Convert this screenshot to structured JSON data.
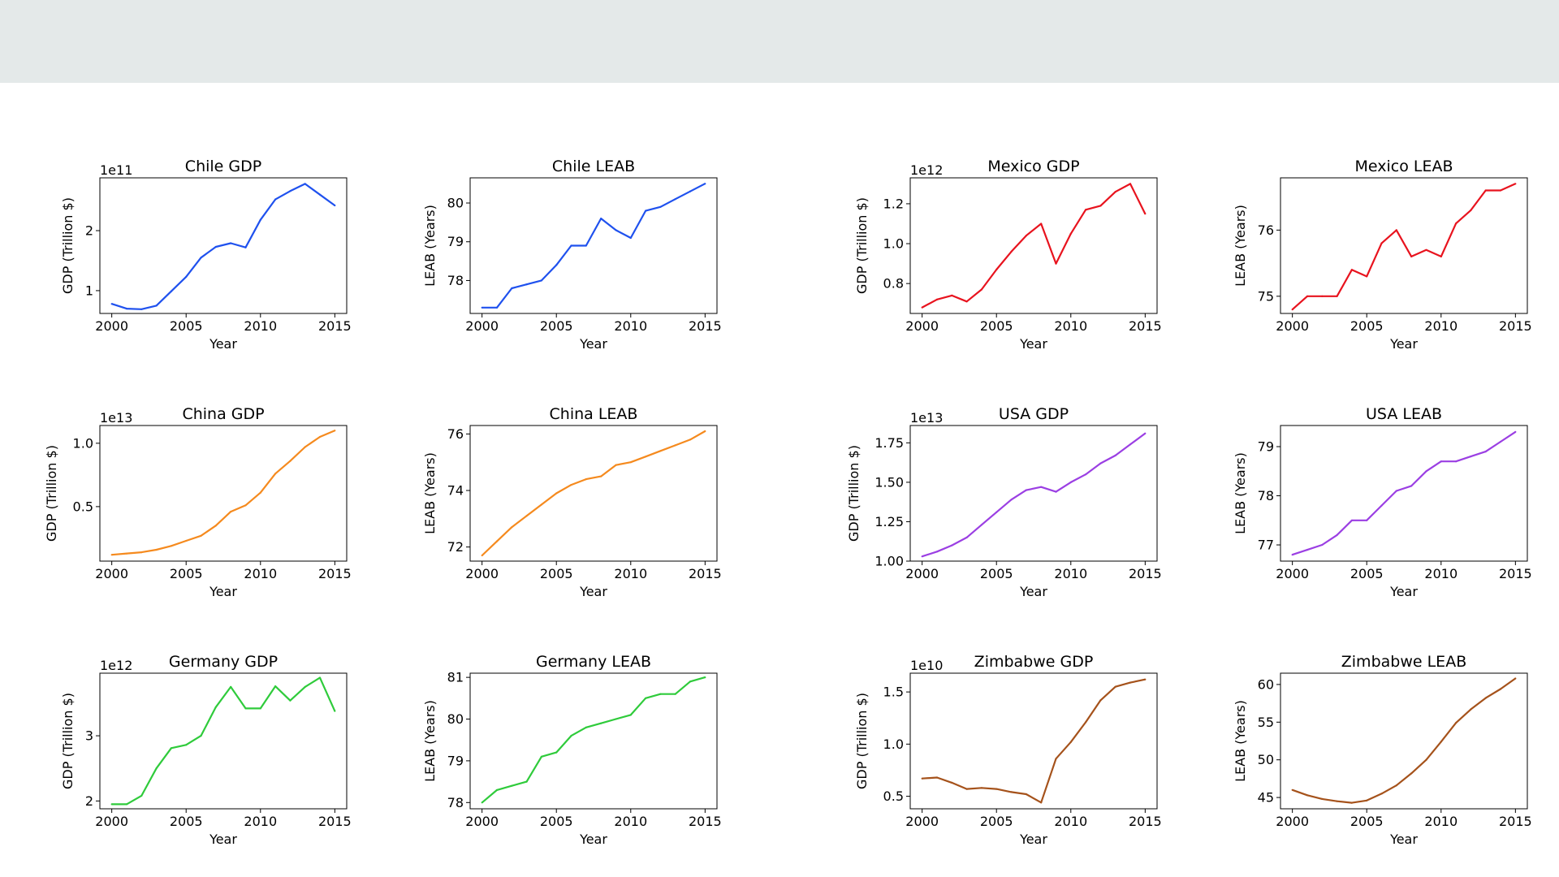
{
  "page": {
    "banner_color": "#e4e9e9"
  },
  "chart_data": [
    {
      "type": "line",
      "title": "Chile GDP",
      "xlabel": "Year",
      "ylabel": "GDP (Trillion $)",
      "offset_text": "1e11",
      "color": "#1f51ee",
      "x": [
        2000,
        2001,
        2002,
        2003,
        2004,
        2005,
        2006,
        2007,
        2008,
        2009,
        2010,
        2011,
        2012,
        2013,
        2014,
        2015
      ],
      "values": [
        0.78,
        0.7,
        0.69,
        0.75,
        0.99,
        1.23,
        1.55,
        1.73,
        1.79,
        1.72,
        2.18,
        2.52,
        2.66,
        2.78,
        2.6,
        2.42
      ],
      "xlim": [
        1999.2,
        2015.8
      ],
      "ylim": [
        0.62,
        2.88
      ],
      "xticks": [
        2000,
        2005,
        2010,
        2015
      ],
      "yticks": [
        1,
        2
      ],
      "ytick_labels": [
        "1",
        "2"
      ]
    },
    {
      "type": "line",
      "title": "Chile LEAB",
      "xlabel": "Year",
      "ylabel": "LEAB (Years)",
      "color": "#1f51ee",
      "x": [
        2000,
        2001,
        2002,
        2003,
        2004,
        2005,
        2006,
        2007,
        2008,
        2009,
        2010,
        2011,
        2012,
        2013,
        2014,
        2015
      ],
      "values": [
        77.3,
        77.3,
        77.8,
        77.9,
        78.0,
        78.4,
        78.9,
        78.9,
        79.6,
        79.3,
        79.1,
        79.8,
        79.9,
        80.1,
        80.3,
        80.5
      ],
      "xlim": [
        1999.2,
        2015.8
      ],
      "ylim": [
        77.15,
        80.65
      ],
      "xticks": [
        2000,
        2005,
        2010,
        2015
      ],
      "yticks": [
        78,
        79,
        80
      ],
      "ytick_labels": [
        "78",
        "79",
        "80"
      ]
    },
    {
      "type": "line",
      "title": "Mexico GDP",
      "xlabel": "Year",
      "ylabel": "GDP (Trillion $)",
      "offset_text": "1e12",
      "color": "#e8131e",
      "x": [
        2000,
        2001,
        2002,
        2003,
        2004,
        2005,
        2006,
        2007,
        2008,
        2009,
        2010,
        2011,
        2012,
        2013,
        2014,
        2015
      ],
      "values": [
        0.68,
        0.72,
        0.74,
        0.71,
        0.77,
        0.87,
        0.96,
        1.04,
        1.1,
        0.9,
        1.05,
        1.17,
        1.19,
        1.26,
        1.3,
        1.15
      ],
      "xlim": [
        1999.2,
        2015.8
      ],
      "ylim": [
        0.65,
        1.33
      ],
      "xticks": [
        2000,
        2005,
        2010,
        2015
      ],
      "yticks": [
        0.8,
        1.0,
        1.2
      ],
      "ytick_labels": [
        "0.8",
        "1.0",
        "1.2"
      ]
    },
    {
      "type": "line",
      "title": "Mexico LEAB",
      "xlabel": "Year",
      "ylabel": "LEAB (Years)",
      "color": "#e8131e",
      "x": [
        2000,
        2001,
        2002,
        2003,
        2004,
        2005,
        2006,
        2007,
        2008,
        2009,
        2010,
        2011,
        2012,
        2013,
        2014,
        2015
      ],
      "values": [
        74.8,
        75.0,
        75.0,
        75.0,
        75.4,
        75.3,
        75.8,
        76.0,
        75.6,
        75.7,
        75.6,
        76.1,
        76.3,
        76.6,
        76.6,
        76.7
      ],
      "xlim": [
        1999.2,
        2015.8
      ],
      "ylim": [
        74.74,
        76.79
      ],
      "xticks": [
        2000,
        2005,
        2010,
        2015
      ],
      "yticks": [
        75,
        76
      ],
      "ytick_labels": [
        "75",
        "76"
      ]
    },
    {
      "type": "line",
      "title": "China GDP",
      "xlabel": "Year",
      "ylabel": "GDP (Trillion $)",
      "offset_text": "1e13",
      "color": "#f58a1e",
      "x": [
        2000,
        2001,
        2002,
        2003,
        2004,
        2005,
        2006,
        2007,
        2008,
        2009,
        2010,
        2011,
        2012,
        2013,
        2014,
        2015
      ],
      "values": [
        0.12,
        0.13,
        0.14,
        0.16,
        0.19,
        0.23,
        0.27,
        0.35,
        0.46,
        0.51,
        0.61,
        0.76,
        0.86,
        0.97,
        1.05,
        1.1
      ],
      "xlim": [
        1999.2,
        2015.8
      ],
      "ylim": [
        0.07,
        1.14
      ],
      "xticks": [
        2000,
        2005,
        2010,
        2015
      ],
      "yticks": [
        0.5,
        1.0
      ],
      "ytick_labels": [
        "0.5",
        "1.0"
      ]
    },
    {
      "type": "line",
      "title": "China LEAB",
      "xlabel": "Year",
      "ylabel": "LEAB (Years)",
      "color": "#f58a1e",
      "x": [
        2000,
        2001,
        2002,
        2003,
        2004,
        2005,
        2006,
        2007,
        2008,
        2009,
        2010,
        2011,
        2012,
        2013,
        2014,
        2015
      ],
      "values": [
        71.7,
        72.2,
        72.7,
        73.1,
        73.5,
        73.9,
        74.2,
        74.4,
        74.5,
        74.9,
        75.0,
        75.2,
        75.4,
        75.6,
        75.8,
        76.1
      ],
      "xlim": [
        1999.2,
        2015.8
      ],
      "ylim": [
        71.5,
        76.3
      ],
      "xticks": [
        2000,
        2005,
        2010,
        2015
      ],
      "yticks": [
        72,
        74,
        76
      ],
      "ytick_labels": [
        "72",
        "74",
        "76"
      ]
    },
    {
      "type": "line",
      "title": "USA GDP",
      "xlabel": "Year",
      "ylabel": "GDP (Trillion $)",
      "offset_text": "1e13",
      "color": "#9b3fe3",
      "x": [
        2000,
        2001,
        2002,
        2003,
        2004,
        2005,
        2006,
        2007,
        2008,
        2009,
        2010,
        2011,
        2012,
        2013,
        2014,
        2015
      ],
      "values": [
        1.03,
        1.06,
        1.1,
        1.15,
        1.23,
        1.31,
        1.39,
        1.45,
        1.47,
        1.44,
        1.5,
        1.55,
        1.62,
        1.67,
        1.74,
        1.81
      ],
      "xlim": [
        1999.2,
        2015.8
      ],
      "ylim": [
        1.0,
        1.86
      ],
      "xticks": [
        2000,
        2005,
        2010,
        2015
      ],
      "yticks": [
        1.0,
        1.25,
        1.5,
        1.75
      ],
      "ytick_labels": [
        "1.00",
        "1.25",
        "1.50",
        "1.75"
      ]
    },
    {
      "type": "line",
      "title": "USA LEAB",
      "xlabel": "Year",
      "ylabel": "LEAB (Years)",
      "color": "#9b3fe3",
      "x": [
        2000,
        2001,
        2002,
        2003,
        2004,
        2005,
        2006,
        2007,
        2008,
        2009,
        2010,
        2011,
        2012,
        2013,
        2014,
        2015
      ],
      "values": [
        76.8,
        76.9,
        77.0,
        77.2,
        77.5,
        77.5,
        77.8,
        78.1,
        78.2,
        78.5,
        78.7,
        78.7,
        78.8,
        78.9,
        79.1,
        79.3
      ],
      "xlim": [
        1999.2,
        2015.8
      ],
      "ylim": [
        76.67,
        79.43
      ],
      "xticks": [
        2000,
        2005,
        2010,
        2015
      ],
      "yticks": [
        77,
        78,
        79
      ],
      "ytick_labels": [
        "77",
        "78",
        "79"
      ]
    },
    {
      "type": "line",
      "title": "Germany GDP",
      "xlabel": "Year",
      "ylabel": "GDP (Trillion $)",
      "offset_text": "1e12",
      "color": "#2fcb3b",
      "x": [
        2000,
        2001,
        2002,
        2003,
        2004,
        2005,
        2006,
        2007,
        2008,
        2009,
        2010,
        2011,
        2012,
        2013,
        2014,
        2015
      ],
      "values": [
        1.95,
        1.95,
        2.08,
        2.5,
        2.81,
        2.86,
        3.0,
        3.44,
        3.75,
        3.42,
        3.42,
        3.76,
        3.54,
        3.75,
        3.89,
        3.38
      ],
      "xlim": [
        1999.2,
        2015.8
      ],
      "ylim": [
        1.88,
        3.96
      ],
      "xticks": [
        2000,
        2005,
        2010,
        2015
      ],
      "yticks": [
        2,
        3
      ],
      "ytick_labels": [
        "2",
        "3"
      ]
    },
    {
      "type": "line",
      "title": "Germany LEAB",
      "xlabel": "Year",
      "ylabel": "LEAB (Years)",
      "color": "#2fcb3b",
      "x": [
        2000,
        2001,
        2002,
        2003,
        2004,
        2005,
        2006,
        2007,
        2008,
        2009,
        2010,
        2011,
        2012,
        2013,
        2014,
        2015
      ],
      "values": [
        78.0,
        78.3,
        78.4,
        78.5,
        79.1,
        79.2,
        79.6,
        79.8,
        79.9,
        80.0,
        80.1,
        80.5,
        80.6,
        80.6,
        80.9,
        81.0
      ],
      "xlim": [
        1999.2,
        2015.8
      ],
      "ylim": [
        77.85,
        81.1
      ],
      "xticks": [
        2000,
        2005,
        2010,
        2015
      ],
      "yticks": [
        78,
        79,
        80,
        81
      ],
      "ytick_labels": [
        "78",
        "79",
        "80",
        "81"
      ]
    },
    {
      "type": "line",
      "title": "Zimbabwe GDP",
      "xlabel": "Year",
      "ylabel": "GDP (Trillion $)",
      "offset_text": "1e10",
      "color": "#a5521b",
      "x": [
        2000,
        2001,
        2002,
        2003,
        2004,
        2005,
        2006,
        2007,
        2008,
        2009,
        2010,
        2011,
        2012,
        2013,
        2014,
        2015
      ],
      "values": [
        0.67,
        0.68,
        0.63,
        0.57,
        0.58,
        0.57,
        0.54,
        0.52,
        0.44,
        0.86,
        1.02,
        1.21,
        1.42,
        1.55,
        1.59,
        1.62
      ],
      "xlim": [
        1999.2,
        2015.8
      ],
      "ylim": [
        0.38,
        1.68
      ],
      "xticks": [
        2000,
        2005,
        2010,
        2015
      ],
      "yticks": [
        0.5,
        1.0,
        1.5
      ],
      "ytick_labels": [
        "0.5",
        "1.0",
        "1.5"
      ]
    },
    {
      "type": "line",
      "title": "Zimbabwe LEAB",
      "xlabel": "Year",
      "ylabel": "LEAB (Years)",
      "color": "#a5521b",
      "x": [
        2000,
        2001,
        2002,
        2003,
        2004,
        2005,
        2006,
        2007,
        2008,
        2009,
        2010,
        2011,
        2012,
        2013,
        2014,
        2015
      ],
      "values": [
        46.0,
        45.3,
        44.8,
        44.5,
        44.3,
        44.6,
        45.5,
        46.6,
        48.2,
        50.0,
        52.4,
        54.9,
        56.7,
        58.2,
        59.4,
        60.8
      ],
      "xlim": [
        1999.2,
        2015.8
      ],
      "ylim": [
        43.5,
        61.5
      ],
      "xticks": [
        2000,
        2005,
        2010,
        2015
      ],
      "yticks": [
        45,
        50,
        55,
        60
      ],
      "ytick_labels": [
        "45",
        "50",
        "55",
        "60"
      ]
    }
  ]
}
